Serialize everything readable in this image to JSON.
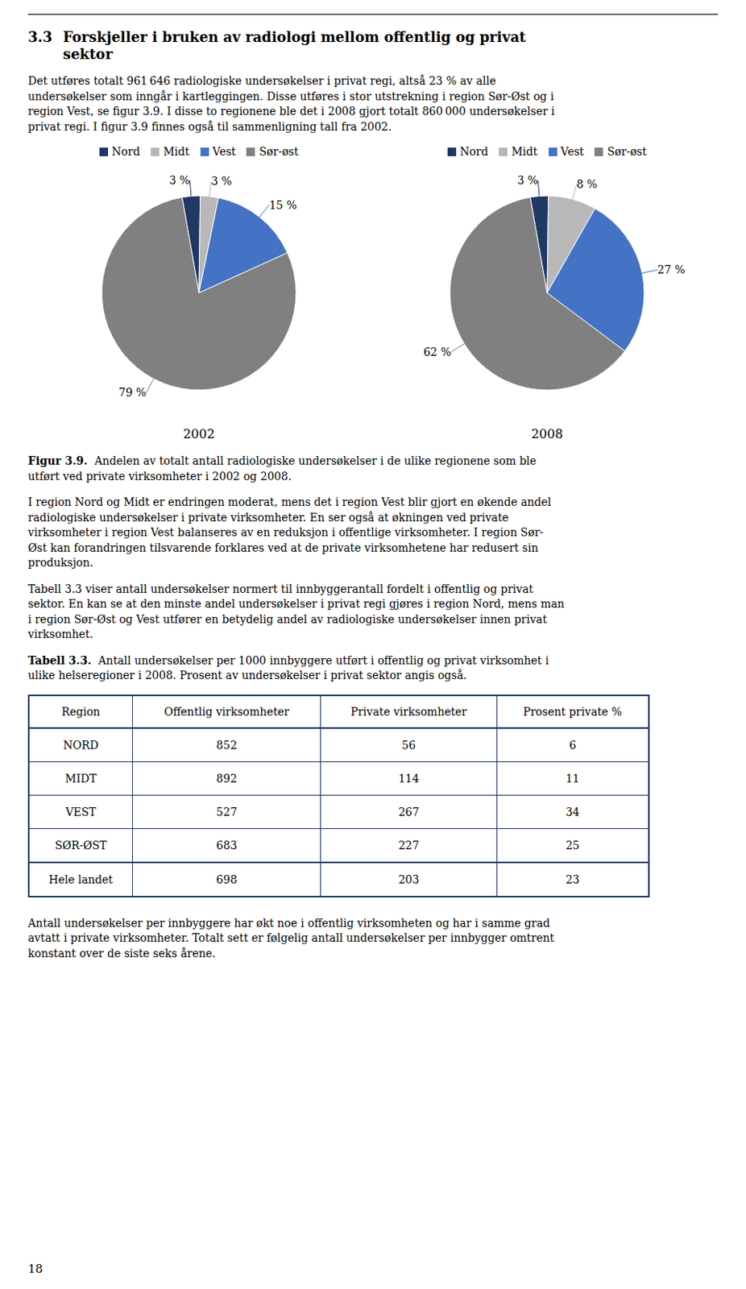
{
  "chart_data": [
    {
      "type": "pie",
      "title": "2002",
      "categories": [
        "Nord",
        "Midt",
        "Vest",
        "Sør-øst"
      ],
      "values": [
        3,
        3,
        15,
        79
      ],
      "value_labels": [
        "3 %",
        "3 %",
        "15 %",
        "79 %"
      ],
      "colors": [
        "#1f3864",
        "#b8b8b8",
        "#4472c4",
        "#808080"
      ],
      "data_labels": true,
      "legend": "top"
    },
    {
      "type": "pie",
      "title": "2008",
      "categories": [
        "Nord",
        "Midt",
        "Vest",
        "Sør-øst"
      ],
      "values": [
        3,
        8,
        27,
        62
      ],
      "value_labels": [
        "3 %",
        "8 %",
        "27 %",
        "62 %"
      ],
      "colors": [
        "#1f3864",
        "#b8b8b8",
        "#4472c4",
        "#808080"
      ],
      "data_labels": true,
      "legend": "top"
    }
  ],
  "annotations": {
    "heading": {
      "number": "3.3",
      "lines": [
        "Forskjeller i bruken av radiologi mellom offentlig og privat",
        "sektor"
      ]
    },
    "paragraphs_before": [
      [
        "Det utføres totalt 961 646 radiologiske undersøkelser i privat regi, altså 23 % av alle",
        "undersøkelser som inngår i kartleggingen. Disse utføres i stor utstrekning i region Sør-Øst og i",
        "region Vest, se figur 3.9. I disse to regionene ble det i 2008 gjort totalt 860 000 undersøkelser i",
        "privat regi. I figur 3.9 finnes også til sammenligning tall fra 2002."
      ]
    ],
    "figure_caption": {
      "label": "Figur 3.9.",
      "lines": [
        "Andelen av totalt antall radiologiske undersøkelser i de ulike regionene som ble",
        "utført ved private virksomheter i 2002 og 2008."
      ]
    },
    "paragraphs_middle": [
      [
        "I region Nord og Midt er endringen moderat, mens det i region Vest blir gjort en økende andel",
        "radiologiske undersøkelser i private virksomheter. En ser også at økningen ved private",
        "virksomheter i region Vest balanseres av en reduksjon i offentlige virksomheter. I region Sør-",
        "Øst kan forandringen tilsvarende forklares ved at de private virksomhetene har redusert sin",
        "produksjon."
      ],
      [
        "Tabell 3.3 viser antall undersøkelser normert til innbyggerantall fordelt i offentlig og privat",
        "sektor. En kan se at den minste andel undersøkelser i privat regi gjøres i region Nord, mens man",
        "i region Sør-Øst og Vest utfører en betydelig andel av radiologiske undersøkelser innen privat",
        "virksomhet."
      ]
    ],
    "table_caption": {
      "label": "Tabell 3.3.",
      "lines": [
        "Antall undersøkelser per 1000 innbyggere utført i offentlig og privat virksomhet i",
        "ulike helseregioner i 2008. Prosent av undersøkelser i privat sektor angis også."
      ]
    },
    "table": {
      "columns": [
        "Region",
        "Offentlig virksomheter",
        "Private virksomheter",
        "Prosent private %"
      ],
      "rows": [
        [
          "NORD",
          "852",
          "56",
          "6"
        ],
        [
          "MIDT",
          "892",
          "114",
          "11"
        ],
        [
          "VEST",
          "527",
          "267",
          "34"
        ],
        [
          "SØR-ØST",
          "683",
          "227",
          "25"
        ]
      ],
      "footer": [
        "Hele landet",
        "698",
        "203",
        "23"
      ],
      "color": "#1f3864"
    },
    "paragraphs_after": [
      [
        "Antall undersøkelser per innbyggere har økt noe i offentlig virksomheten og har i samme grad",
        "avtatt i private virksomheter. Totalt sett er følgelig antall undersøkelser per innbygger omtrent",
        "konstant over de siste seks årene."
      ]
    ],
    "page_number": "18"
  }
}
